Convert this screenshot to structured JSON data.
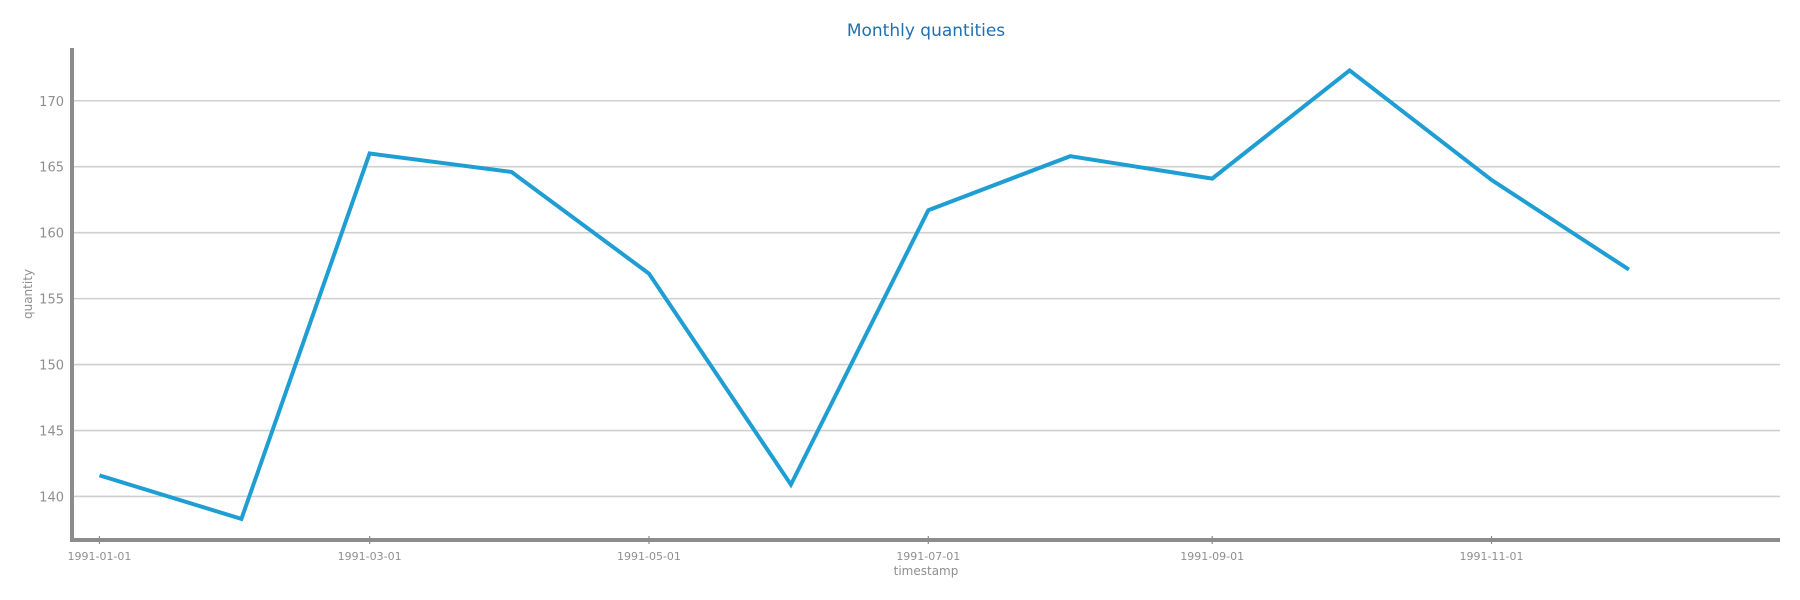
{
  "chart_data": {
    "type": "line",
    "title": "Monthly quantities",
    "xlabel": "timestamp",
    "ylabel": "quantity",
    "x": [
      "1991-01-01",
      "1991-02-01",
      "1991-03-01",
      "1991-04-01",
      "1991-05-01",
      "1991-06-01",
      "1991-07-01",
      "1991-08-01",
      "1991-09-01",
      "1991-10-01",
      "1991-11-01",
      "1991-12-01"
    ],
    "series": [
      {
        "values": [
          141.6,
          138.3,
          166.0,
          164.6,
          156.9,
          140.9,
          161.7,
          165.8,
          164.1,
          172.3,
          164.0,
          157.2
        ]
      }
    ],
    "xticks": [
      "1991-01-01",
      "1991-03-01",
      "1991-05-01",
      "1991-07-01",
      "1991-09-01",
      "1991-11-01"
    ],
    "yticks": [
      140,
      145,
      150,
      155,
      160,
      165,
      170
    ],
    "xlim": [
      "1990-12-26",
      "1992-01-03"
    ],
    "ylim": [
      136.7,
      174.0
    ],
    "grid": "horizontal",
    "colors": {
      "line": "#1f9ed4",
      "title": "#1f6fb3",
      "axis": "#8c8c8c",
      "grid": "#cfcfcf",
      "text": "#8f8f8f"
    }
  }
}
